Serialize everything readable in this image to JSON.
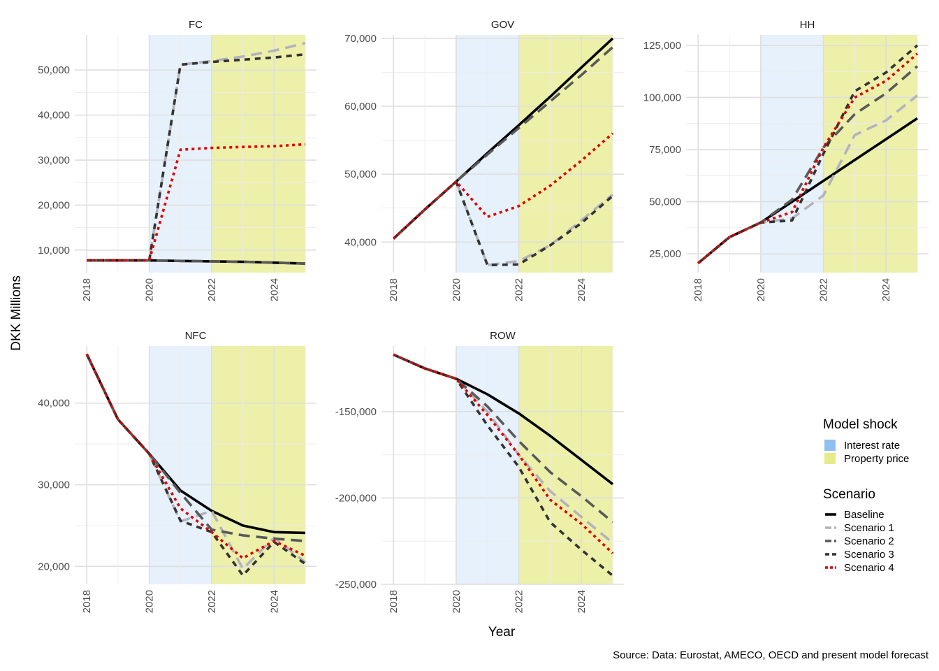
{
  "chart_data": {
    "type": "line",
    "ylabel": "DKK Millions",
    "xlabel": "Year",
    "caption": "Source: Data: Eurostat, AMECO, OECD and present model forecast",
    "x": [
      2018,
      2019,
      2020,
      2021,
      2022,
      2023,
      2024,
      2025
    ],
    "x_ticks": [
      2018,
      2020,
      2022,
      2024
    ],
    "x_range": [
      2017.95,
      2025
    ],
    "grid": true,
    "legend_position": "right",
    "shock_legend": {
      "title": "Model shock",
      "items": [
        {
          "label": "Interest rate",
          "color": "#8fc0f0",
          "from": 2020,
          "to": 2022
        },
        {
          "label": "Property price",
          "color": "#e6eb8c",
          "from": 2022,
          "to": 2025
        }
      ]
    },
    "scenario_legend": {
      "title": "Scenario",
      "items": [
        {
          "label": "Baseline",
          "color": "#000000",
          "dash": "solid"
        },
        {
          "label": "Scenario 1",
          "color": "#b3b3bc",
          "dash": "longdash"
        },
        {
          "label": "Scenario 2",
          "color": "#595959",
          "dash": "longdash"
        },
        {
          "label": "Scenario 3",
          "color": "#333333",
          "dash": "dash"
        },
        {
          "label": "Scenario 4",
          "color": "#dd0000",
          "dash": "dot"
        }
      ]
    },
    "panels": [
      {
        "title": "FC",
        "ylim": [
          5000,
          57800
        ],
        "y_ticks": [
          10000,
          20000,
          30000,
          40000,
          50000
        ],
        "y_tick_labels": [
          "10,000",
          "20,000",
          "30,000",
          "40,000",
          "50,000"
        ],
        "series": [
          {
            "name": "Baseline",
            "values": [
              7700,
              7700,
              7700,
              7600,
              7500,
              7400,
              7200,
              7000
            ]
          },
          {
            "name": "Scenario 1",
            "values": [
              7700,
              7700,
              7700,
              51200,
              52000,
              53000,
              54300,
              56000
            ]
          },
          {
            "name": "Scenario 2",
            "values": [
              7700,
              7700,
              7700,
              7600,
              7500,
              7400,
              7200,
              7000
            ]
          },
          {
            "name": "Scenario 3",
            "values": [
              7700,
              7700,
              7700,
              51200,
              51800,
              52300,
              52800,
              53500
            ]
          },
          {
            "name": "Scenario 4",
            "values": [
              7700,
              7700,
              7700,
              32300,
              32700,
              32900,
              33100,
              33500
            ]
          }
        ]
      },
      {
        "title": "GOV",
        "ylim": [
          35500,
          70500
        ],
        "y_ticks": [
          40000,
          50000,
          60000,
          70000
        ],
        "y_tick_labels": [
          "40,000",
          "50,000",
          "60,000",
          "70,000"
        ],
        "series": [
          {
            "name": "Baseline",
            "values": [
              40500,
              44800,
              48900,
              53100,
              57200,
              61400,
              65700,
              70000
            ]
          },
          {
            "name": "Scenario 1",
            "values": [
              40500,
              44800,
              48900,
              36600,
              37200,
              39500,
              43200,
              47000
            ]
          },
          {
            "name": "Scenario 2",
            "values": [
              40500,
              44800,
              48900,
              52900,
              56800,
              60700,
              64600,
              68700
            ]
          },
          {
            "name": "Scenario 3",
            "values": [
              40500,
              44800,
              48900,
              36600,
              36700,
              39500,
              42800,
              46800
            ]
          },
          {
            "name": "Scenario 4",
            "values": [
              40500,
              44800,
              48900,
              43700,
              45300,
              48300,
              52000,
              56000
            ]
          }
        ]
      },
      {
        "title": "HH",
        "ylim": [
          16000,
          130000
        ],
        "y_ticks": [
          25000,
          50000,
          75000,
          100000,
          125000
        ],
        "y_tick_labels": [
          "25,000",
          "50,000",
          "75,000",
          "100,000",
          "125,000"
        ],
        "series": [
          {
            "name": "Baseline",
            "values": [
              20500,
              33000,
              40000,
              50000,
              60000,
              70000,
              80000,
              90000
            ]
          },
          {
            "name": "Scenario 1",
            "values": [
              20500,
              33000,
              40000,
              42000,
              53000,
              82000,
              89000,
              101000
            ]
          },
          {
            "name": "Scenario 2",
            "values": [
              20500,
              33000,
              40000,
              51000,
              76000,
              92000,
              102000,
              115000
            ]
          },
          {
            "name": "Scenario 3",
            "values": [
              20500,
              33000,
              40000,
              41000,
              73000,
              103000,
              112000,
              125000
            ]
          },
          {
            "name": "Scenario 4",
            "values": [
              20500,
              33000,
              40000,
              45000,
              76000,
              100000,
              108000,
              121000
            ]
          }
        ]
      },
      {
        "title": "NFC",
        "ylim": [
          17800,
          47000
        ],
        "y_ticks": [
          20000,
          30000,
          40000
        ],
        "y_tick_labels": [
          "20,000",
          "30,000",
          "40,000"
        ],
        "series": [
          {
            "name": "Baseline",
            "values": [
              46000,
              38000,
              33800,
              29300,
              26800,
              25000,
              24200,
              24100
            ]
          },
          {
            "name": "Scenario 1",
            "values": [
              46000,
              38000,
              33800,
              25500,
              26800,
              19700,
              23500,
              20500
            ]
          },
          {
            "name": "Scenario 2",
            "values": [
              46000,
              38000,
              33800,
              29000,
              24500,
              23800,
              23400,
              23100
            ]
          },
          {
            "name": "Scenario 3",
            "values": [
              46000,
              38000,
              33800,
              25600,
              24200,
              18900,
              23000,
              20300
            ]
          },
          {
            "name": "Scenario 4",
            "values": [
              46000,
              38000,
              33800,
              27100,
              24200,
              21000,
              23100,
              21300
            ]
          }
        ]
      },
      {
        "title": "ROW",
        "ylim": [
          -250000,
          -112000
        ],
        "y_ticks": [
          -150000,
          -200000,
          -250000
        ],
        "y_tick_labels": [
          "-150,000",
          "-200,000",
          "-250,000"
        ],
        "series": [
          {
            "name": "Baseline",
            "values": [
              -117000,
              -125000,
              -131000,
              -140000,
              -151000,
              -164000,
              -178000,
              -192000
            ]
          },
          {
            "name": "Scenario 1",
            "values": [
              -117000,
              -125000,
              -131000,
              -150000,
              -175000,
              -196000,
              -211000,
              -226000
            ]
          },
          {
            "name": "Scenario 2",
            "values": [
              -117000,
              -125000,
              -131000,
              -147000,
              -167000,
              -185000,
              -199000,
              -214000
            ]
          },
          {
            "name": "Scenario 3",
            "values": [
              -117000,
              -125000,
              -131000,
              -158000,
              -182000,
              -214000,
              -230000,
              -245000
            ]
          },
          {
            "name": "Scenario 4",
            "values": [
              -117000,
              -125000,
              -131000,
              -152000,
              -175000,
              -201000,
              -215000,
              -232000
            ]
          }
        ]
      }
    ]
  }
}
